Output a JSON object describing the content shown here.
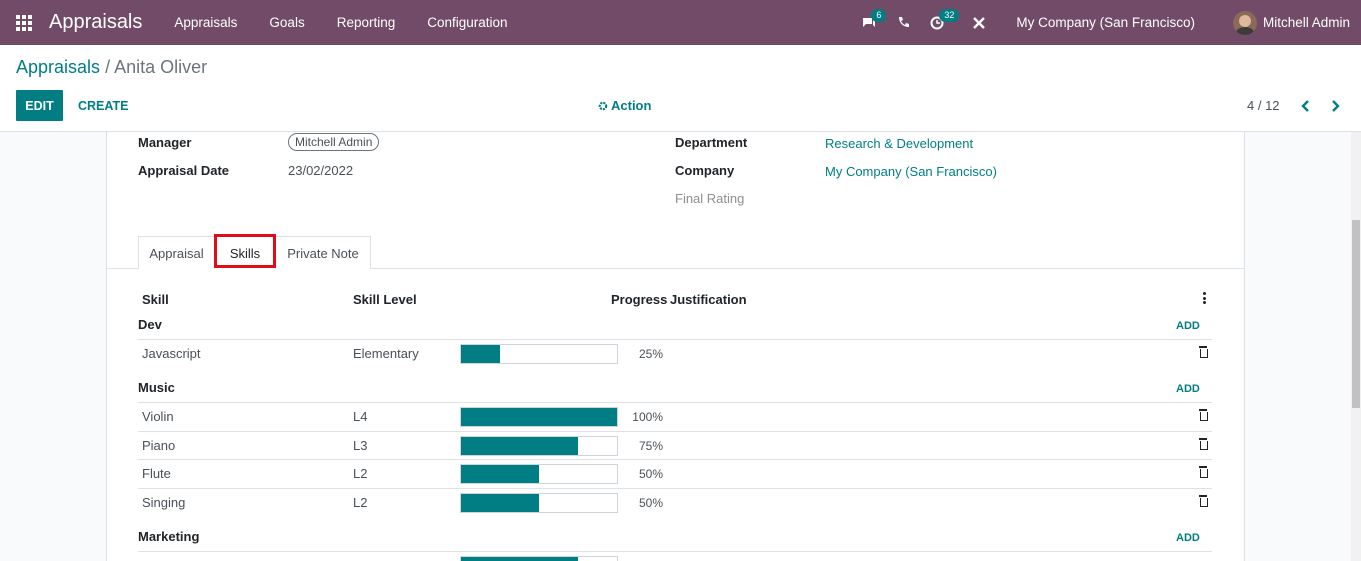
{
  "navbar": {
    "brand": "Appraisals",
    "menu": [
      "Appraisals",
      "Goals",
      "Reporting",
      "Configuration"
    ],
    "messages_badge": "6",
    "activities_badge": "32",
    "company": "My Company (San Francisco)",
    "user": "Mitchell Admin"
  },
  "control": {
    "breadcrumb_root": "Appraisals",
    "breadcrumb_sep": "/",
    "breadcrumb_current": "Anita Oliver",
    "edit": "EDIT",
    "create": "CREATE",
    "action": "Action",
    "pager": "4 / 12"
  },
  "form": {
    "manager_label": "Manager",
    "manager_value": "Mitchell Admin",
    "date_label": "Appraisal Date",
    "date_value": "23/02/2022",
    "department_label": "Department",
    "department_value": "Research & Development",
    "company_label": "Company",
    "company_value": "My Company (San Francisco)",
    "final_rating_label": "Final Rating"
  },
  "tabs": [
    "Appraisal",
    "Skills",
    "Private Note"
  ],
  "table": {
    "headers": {
      "skill": "Skill",
      "level": "Skill Level",
      "progress": "Progress",
      "justification": "Justification"
    },
    "add_label": "ADD",
    "groups": [
      {
        "name": "Dev",
        "rows": [
          {
            "skill": "Javascript",
            "level": "Elementary",
            "progress": 25,
            "pct": "25%"
          }
        ]
      },
      {
        "name": "Music",
        "rows": [
          {
            "skill": "Violin",
            "level": "L4",
            "progress": 100,
            "pct": "100%"
          },
          {
            "skill": "Piano",
            "level": "L3",
            "progress": 75,
            "pct": "75%"
          },
          {
            "skill": "Flute",
            "level": "L2",
            "progress": 50,
            "pct": "50%"
          },
          {
            "skill": "Singing",
            "level": "L2",
            "progress": 50,
            "pct": "50%"
          }
        ]
      },
      {
        "name": "Marketing",
        "rows": [
          {
            "skill": "",
            "level": "",
            "progress": 75,
            "pct": ""
          }
        ]
      }
    ]
  }
}
